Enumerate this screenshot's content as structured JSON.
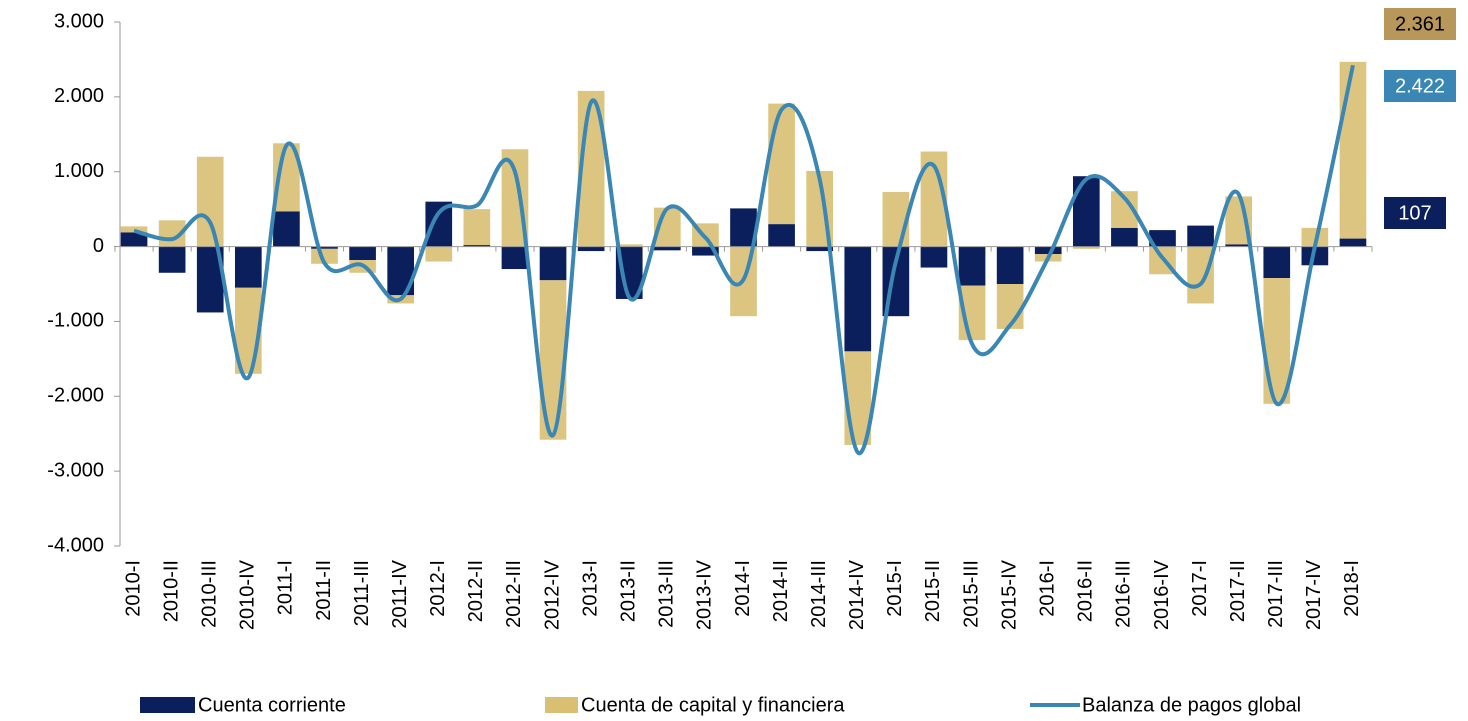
{
  "chart_data": {
    "type": "bar-line",
    "categories": [
      "2010-I",
      "2010-II",
      "2010-III",
      "2010-IV",
      "2011-I",
      "2011-II",
      "2011-III",
      "2011-IV",
      "2012-I",
      "2012-II",
      "2012-III",
      "2012-IV",
      "2013-I",
      "2013-II",
      "2013-III",
      "2013-IV",
      "2014-I",
      "2014-II",
      "2014-III",
      "2014-IV",
      "2015-I",
      "2015-II",
      "2015-III",
      "2015-IV",
      "2016-I",
      "2016-II",
      "2016-III",
      "2016-IV",
      "2017-I",
      "2017-II",
      "2017-III",
      "2017-IV",
      "2018-I"
    ],
    "series": [
      {
        "name": "Cuenta corriente",
        "type": "bar",
        "color": "#0b1f5c",
        "values": [
          190,
          -350,
          -880,
          -550,
          470,
          -30,
          -180,
          -650,
          600,
          20,
          -300,
          -450,
          -60,
          -700,
          -50,
          -120,
          510,
          300,
          -60,
          -1400,
          -930,
          -280,
          -520,
          -500,
          -100,
          940,
          250,
          220,
          280,
          30,
          -420,
          -250,
          107
        ],
        "value_labels": [
          null,
          null,
          null,
          null,
          null,
          null,
          null,
          null,
          null,
          null,
          null,
          null,
          null,
          null,
          null,
          null,
          null,
          null,
          null,
          null,
          null,
          null,
          null,
          null,
          null,
          null,
          null,
          null,
          null,
          null,
          null,
          null,
          "107"
        ]
      },
      {
        "name": "Cuenta de capital y financiera",
        "type": "bar",
        "color": "#d8bf72",
        "values": [
          80,
          350,
          1200,
          -1150,
          910,
          -200,
          -170,
          -110,
          -200,
          480,
          1300,
          -2130,
          2080,
          30,
          520,
          310,
          -930,
          1610,
          1010,
          -1250,
          730,
          1270,
          -730,
          -600,
          -100,
          -30,
          490,
          -370,
          -760,
          640,
          -1680,
          250,
          2361
        ],
        "value_labels": [
          null,
          null,
          null,
          null,
          null,
          null,
          null,
          null,
          null,
          null,
          null,
          null,
          null,
          null,
          null,
          null,
          null,
          null,
          null,
          null,
          null,
          null,
          null,
          null,
          null,
          null,
          null,
          null,
          null,
          null,
          null,
          null,
          "2.361"
        ]
      },
      {
        "name": "Balanza de pagos global",
        "type": "line",
        "color": "#3a86b4",
        "values": [
          210,
          100,
          320,
          -1750,
          1350,
          -220,
          -250,
          -700,
          450,
          550,
          1000,
          -2520,
          1930,
          -680,
          510,
          120,
          -440,
          1830,
          900,
          -2750,
          -200,
          1080,
          -1300,
          -1050,
          -150,
          900,
          650,
          -150,
          -500,
          700,
          -2100,
          0,
          2422
        ],
        "value_labels": [
          null,
          null,
          null,
          null,
          null,
          null,
          null,
          null,
          null,
          null,
          null,
          null,
          null,
          null,
          null,
          null,
          null,
          null,
          null,
          null,
          null,
          null,
          null,
          null,
          null,
          null,
          null,
          null,
          null,
          null,
          null,
          null,
          "2.422"
        ]
      }
    ],
    "ylim": [
      -4000,
      3000
    ],
    "yticks": [
      {
        "value": -4000,
        "label": "-4.000"
      },
      {
        "value": -3000,
        "label": "-3.000"
      },
      {
        "value": -2000,
        "label": "-2.000"
      },
      {
        "value": -1000,
        "label": "-1.000"
      },
      0,
      {
        "value": 1000,
        "label": "1.000"
      },
      {
        "value": 2000,
        "label": "2.000"
      },
      {
        "value": 3000,
        "label": "3.000"
      }
    ],
    "legend": "bottom"
  }
}
